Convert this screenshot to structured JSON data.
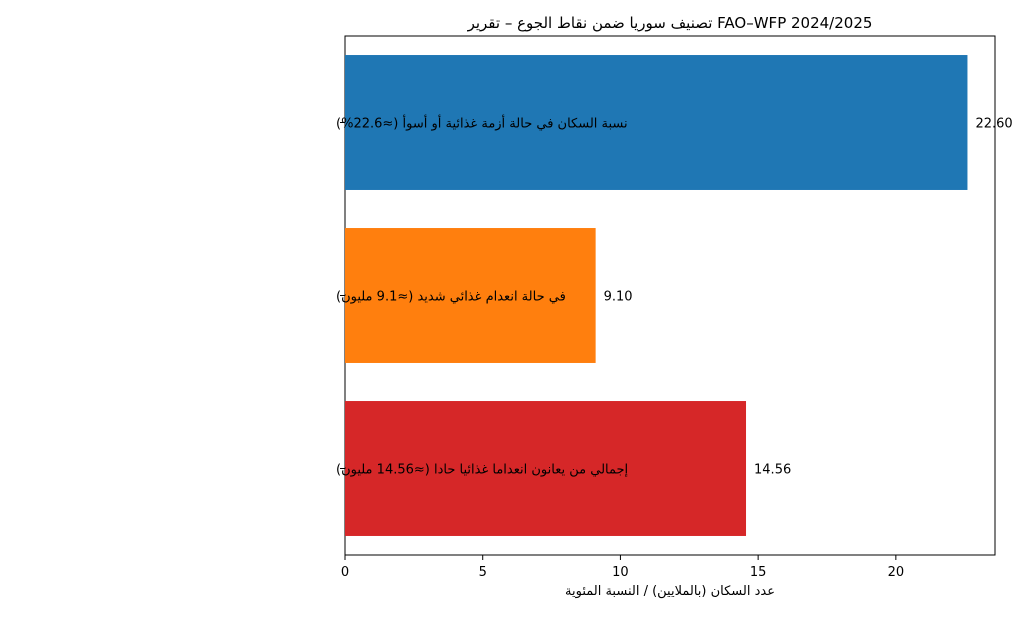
{
  "chart_data": {
    "type": "bar",
    "orientation": "horizontal",
    "title": "تصنيف سوريا ضمن نقاط الجوع – تقرير FAO–WFP 2024/2025",
    "xlabel": "عدد السكان (بالملايين) / النسبة المئوية",
    "ylabel": "",
    "xlim": [
      0,
      23.6
    ],
    "xticks": [
      0,
      5,
      10,
      15,
      20
    ],
    "xtick_labels": [
      "0",
      "5",
      "10",
      "15",
      "20"
    ],
    "grid": false,
    "categories": [
      "نسبة السكان في حالة أزمة غذائية أو أسوأ (≈22.6%)",
      "في حالة انعدام غذائي شديد (≈9.1 مليون)",
      "إجمالي من يعانون انعداما غذائيا حادا (≈14.56 مليون)"
    ],
    "values": [
      22.6,
      9.1,
      14.56
    ],
    "value_labels": [
      "22.60",
      "9.10",
      "14.56"
    ],
    "colors": [
      "#1f77b4",
      "#ff7f0e",
      "#d62728"
    ]
  }
}
